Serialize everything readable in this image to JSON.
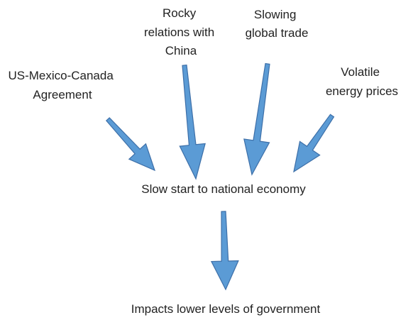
{
  "nodes": [
    {
      "lines": [
        "US-Mexico-Canada",
        "Agreement"
      ]
    },
    {
      "lines": [
        "Rocky",
        "relations with",
        "China"
      ]
    },
    {
      "lines": [
        "Slowing",
        "global trade"
      ]
    },
    {
      "lines": [
        "Volatile",
        "energy prices"
      ]
    },
    {
      "lines": [
        "Slow start to national economy"
      ]
    },
    {
      "lines": [
        "Impacts lower levels of government"
      ]
    }
  ]
}
